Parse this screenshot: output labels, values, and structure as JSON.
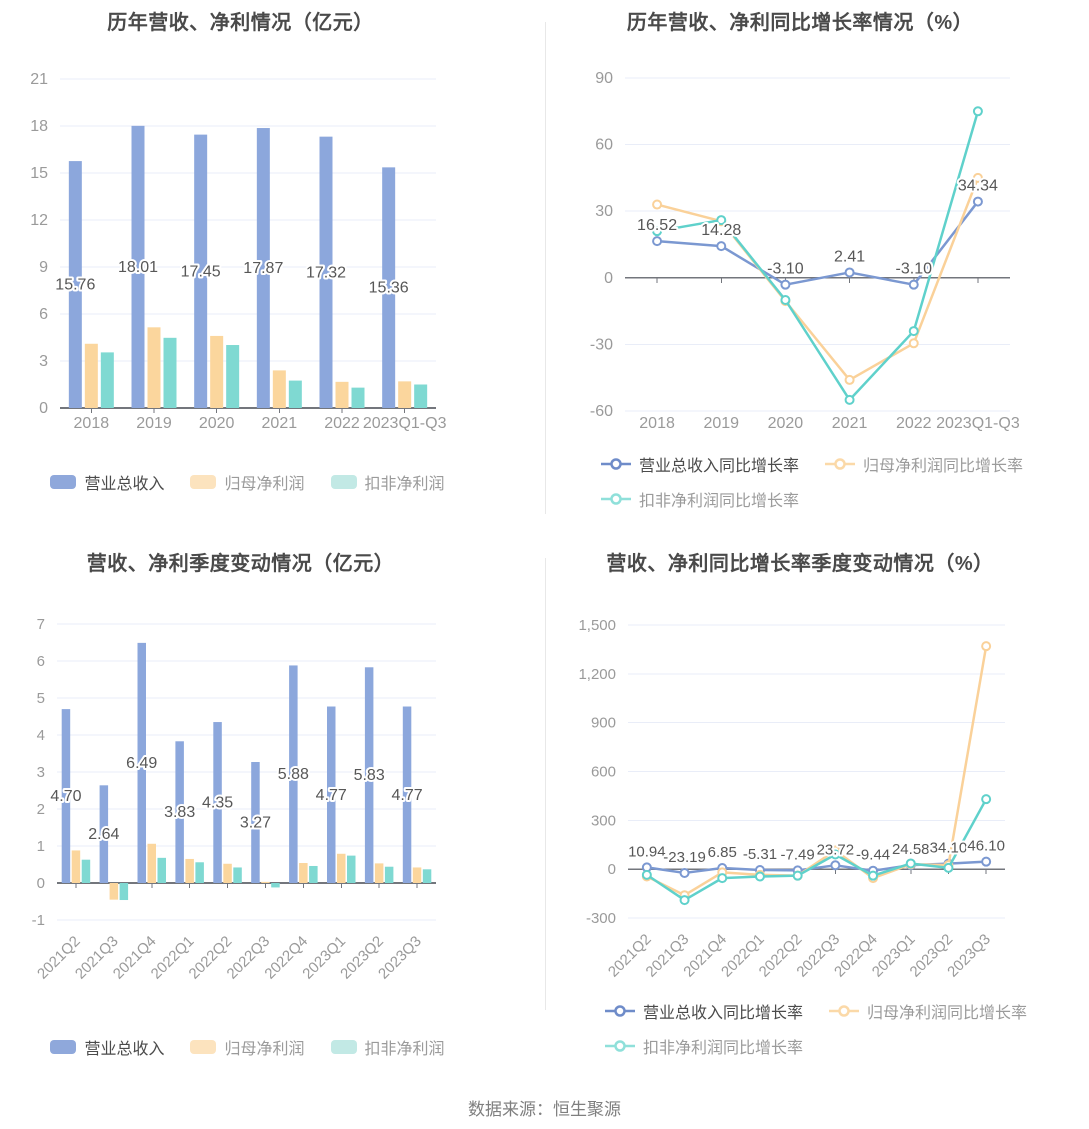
{
  "page": {
    "footer_source": "数据来源：恒生聚源"
  },
  "palette": {
    "grid_line": "#e9edf8",
    "axis_line": "#73767c",
    "tick_text": "#9a9a9a",
    "data_label_text": "#575757",
    "title_text": "#4a4a4a",
    "legend_text_primary": "#4b4b4b",
    "legend_text_secondary": "#9b9b9b",
    "footer_text": "#7f7f7f",
    "divider": "#e8e8e8"
  },
  "chart_data": [
    {
      "id": "annual-revenue-profit",
      "type": "bar",
      "title": "历年营收、净利情况（亿元）",
      "categories": [
        "2018",
        "2019",
        "2020",
        "2021",
        "2022",
        "2023Q1-Q3"
      ],
      "series": [
        {
          "key": "revenue",
          "name": "营业总收入",
          "color": "#8ca7dc",
          "legend_color": "#8fa8db",
          "values": [
            15.76,
            18.01,
            17.45,
            17.87,
            17.32,
            15.36
          ],
          "show_labels": true
        },
        {
          "key": "net-profit",
          "name": "归母净利润",
          "color": "#fbd69d",
          "legend_color": "#fce3be",
          "values": [
            4.1,
            5.15,
            4.6,
            2.4,
            1.67,
            1.7
          ],
          "show_labels": false
        },
        {
          "key": "deducted-net-profit",
          "name": "扣非净利润",
          "color": "#7fd9d2",
          "legend_color": "#c2e9e5",
          "values": [
            3.55,
            4.48,
            4.02,
            1.75,
            1.3,
            1.5
          ],
          "show_labels": false
        }
      ],
      "ylim": [
        0,
        21
      ],
      "yticks": [
        0,
        3,
        6,
        9,
        12,
        15,
        18,
        21
      ],
      "comma_yticks": false,
      "rotate_x_labels": false,
      "grid": true,
      "legend_position": "bottom-center"
    },
    {
      "id": "annual-growth-rate",
      "type": "line",
      "title": "历年营收、净利同比增长率情况（%）",
      "categories": [
        "2018",
        "2019",
        "2020",
        "2021",
        "2022",
        "2023Q1-Q3"
      ],
      "series": [
        {
          "key": "revenue-growth",
          "name": "营业总收入同比增长率",
          "color": "#7b98d1",
          "legend_color": "#6f8cc9",
          "values": [
            16.52,
            14.28,
            -3.1,
            2.41,
            -3.1,
            34.34
          ],
          "show_labels": true
        },
        {
          "key": "net-profit-growth",
          "name": "归母净利润同比增长率",
          "color": "#fad199",
          "legend_color": "#fbd9a8",
          "values": [
            33.0,
            25.5,
            -10.5,
            -46.0,
            -29.5,
            45.0
          ],
          "show_labels": false
        },
        {
          "key": "deducted-net-profit-growth",
          "name": "扣非净利润同比增长率",
          "color": "#5fd1cb",
          "legend_color": "#8fe0da",
          "values": [
            21.0,
            26.0,
            -10.0,
            -55.0,
            -24.0,
            75.0
          ],
          "show_labels": false
        }
      ],
      "ylim": [
        -60,
        90
      ],
      "yticks": [
        -60,
        -30,
        0,
        30,
        60,
        90
      ],
      "comma_yticks": false,
      "rotate_x_labels": false,
      "grid": true,
      "legend_position": "bottom-left-two-rows"
    },
    {
      "id": "quarterly-revenue-profit",
      "type": "bar",
      "title": "营收、净利季度变动情况（亿元）",
      "categories": [
        "2021Q2",
        "2021Q3",
        "2021Q4",
        "2022Q1",
        "2022Q2",
        "2022Q3",
        "2022Q4",
        "2023Q1",
        "2023Q2",
        "2023Q3"
      ],
      "series": [
        {
          "key": "revenue",
          "name": "营业总收入",
          "color": "#8ca7dc",
          "legend_color": "#8fa8db",
          "values": [
            4.7,
            2.64,
            6.49,
            3.83,
            4.35,
            3.27,
            5.88,
            4.77,
            5.83,
            4.77
          ],
          "show_labels": true
        },
        {
          "key": "net-profit",
          "name": "归母净利润",
          "color": "#fbd69d",
          "legend_color": "#fce3be",
          "values": [
            0.88,
            -0.45,
            1.06,
            0.65,
            0.52,
            0.03,
            0.54,
            0.79,
            0.53,
            0.42
          ],
          "show_labels": false
        },
        {
          "key": "deducted-net-profit",
          "name": "扣非净利润",
          "color": "#7fd9d2",
          "legend_color": "#c2e9e5",
          "values": [
            0.63,
            -0.46,
            0.68,
            0.56,
            0.42,
            -0.12,
            0.46,
            0.74,
            0.44,
            0.37
          ],
          "show_labels": false
        }
      ],
      "ylim": [
        -1,
        7
      ],
      "yticks": [
        -1,
        0,
        1,
        2,
        3,
        4,
        5,
        6,
        7
      ],
      "comma_yticks": false,
      "rotate_x_labels": true,
      "grid": true,
      "legend_position": "bottom-center"
    },
    {
      "id": "quarterly-growth-rate",
      "type": "line",
      "title": "营收、净利同比增长率季度变动情况（%）",
      "categories": [
        "2021Q2",
        "2021Q3",
        "2021Q4",
        "2022Q1",
        "2022Q2",
        "2022Q3",
        "2022Q4",
        "2023Q1",
        "2023Q2",
        "2023Q3"
      ],
      "series": [
        {
          "key": "revenue-growth",
          "name": "营业总收入同比增长率",
          "color": "#7b98d1",
          "legend_color": "#6f8cc9",
          "values": [
            10.94,
            -23.19,
            6.85,
            -5.31,
            -7.49,
            23.72,
            -9.44,
            24.58,
            34.1,
            46.1
          ],
          "show_labels": true
        },
        {
          "key": "net-profit-growth",
          "name": "归母净利润同比增长率",
          "color": "#fad199",
          "legend_color": "#fbd9a8",
          "values": [
            -45,
            -160,
            -20,
            -35,
            -40,
            115,
            -55,
            30,
            25,
            1370
          ],
          "show_labels": false
        },
        {
          "key": "deducted-net-profit-growth",
          "name": "扣非净利润同比增长率",
          "color": "#5fd1cb",
          "legend_color": "#8fe0da",
          "values": [
            -35,
            -190,
            -55,
            -45,
            -40,
            90,
            -40,
            35,
            8,
            430
          ],
          "show_labels": false
        }
      ],
      "ylim": [
        -300,
        1500
      ],
      "yticks": [
        -300,
        0,
        300,
        600,
        900,
        1200,
        1500
      ],
      "comma_yticks": true,
      "rotate_x_labels": true,
      "grid": true,
      "legend_position": "bottom-left-two-rows"
    }
  ]
}
